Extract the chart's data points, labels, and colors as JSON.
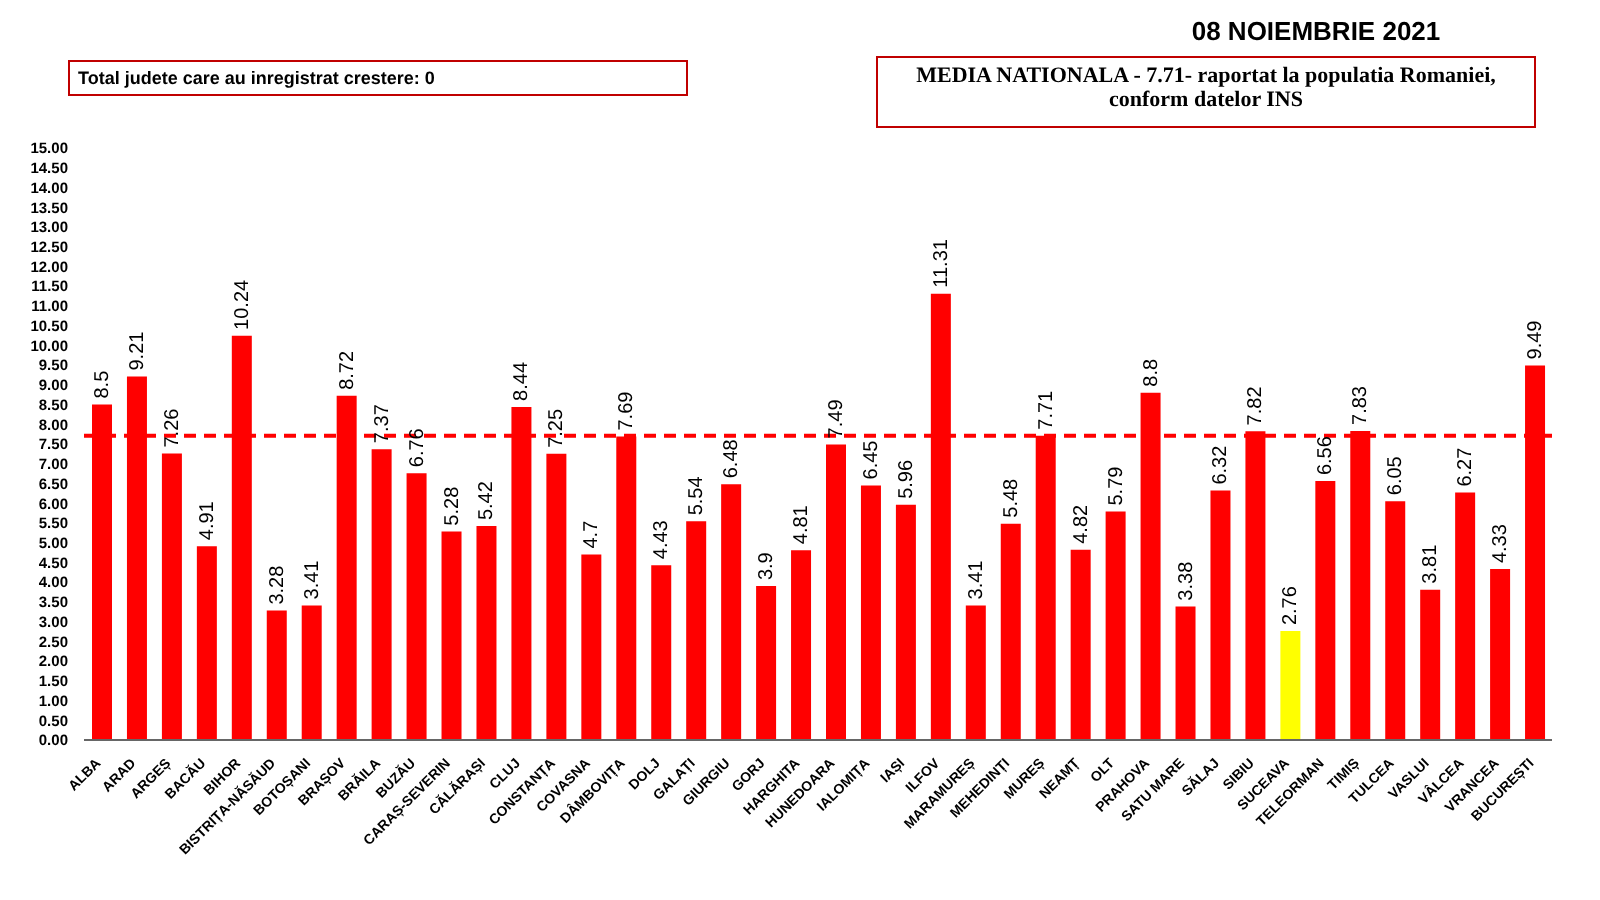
{
  "chart_data": {
    "type": "bar",
    "title": "08 NOIEMBRIE 2021",
    "annotations": [
      "Total judete care au inregistrat crestere: 0",
      "MEDIA NATIONALA - 7.71-  raportat la populatia Romaniei, conform datelor INS"
    ],
    "categories": [
      "ALBA",
      "ARAD",
      "ARGEȘ",
      "BACĂU",
      "BIHOR",
      "BISTRIȚA-NĂSĂUD",
      "BOTOȘANI",
      "BRAȘOV",
      "BRĂILA",
      "BUZĂU",
      "CARAȘ-SEVERIN",
      "CĂLĂRAȘI",
      "CLUJ",
      "CONSTANȚA",
      "COVASNA",
      "DÂMBOVIȚA",
      "DOLJ",
      "GALAȚI",
      "GIURGIU",
      "GORJ",
      "HARGHITA",
      "HUNEDOARA",
      "IALOMIȚA",
      "IAȘI",
      "ILFOV",
      "MARAMUREȘ",
      "MEHEDINȚI",
      "MUREȘ",
      "NEAMȚ",
      "OLT",
      "PRAHOVA",
      "SATU MARE",
      "SĂLAJ",
      "SIBIU",
      "SUCEAVA",
      "TELEORMAN",
      "TIMIȘ",
      "TULCEA",
      "VASLUI",
      "VÂLCEA",
      "VRANCEA",
      "BUCUREȘTI"
    ],
    "values": [
      8.5,
      9.21,
      7.26,
      4.91,
      10.24,
      3.28,
      3.41,
      8.72,
      7.37,
      6.76,
      5.28,
      5.42,
      8.44,
      7.25,
      4.7,
      7.69,
      4.43,
      5.54,
      6.48,
      3.9,
      4.81,
      7.49,
      6.45,
      5.96,
      11.31,
      3.41,
      5.48,
      7.71,
      4.82,
      5.79,
      8.8,
      3.38,
      6.32,
      7.82,
      2.76,
      6.56,
      7.83,
      6.05,
      3.81,
      6.27,
      4.33,
      9.49
    ],
    "colors": [
      "#ff0000",
      "#ff0000",
      "#ff0000",
      "#ff0000",
      "#ff0000",
      "#ff0000",
      "#ff0000",
      "#ff0000",
      "#ff0000",
      "#ff0000",
      "#ff0000",
      "#ff0000",
      "#ff0000",
      "#ff0000",
      "#ff0000",
      "#ff0000",
      "#ff0000",
      "#ff0000",
      "#ff0000",
      "#ff0000",
      "#ff0000",
      "#ff0000",
      "#ff0000",
      "#ff0000",
      "#ff0000",
      "#ff0000",
      "#ff0000",
      "#ff0000",
      "#ff0000",
      "#ff0000",
      "#ff0000",
      "#ff0000",
      "#ff0000",
      "#ff0000",
      "#ffff00",
      "#ff0000",
      "#ff0000",
      "#ff0000",
      "#ff0000",
      "#ff0000",
      "#ff0000",
      "#ff0000"
    ],
    "ylim": [
      0,
      15
    ],
    "yticks": [
      {
        "value": 0,
        "label": "0.00"
      },
      {
        "value": 0.5,
        "label": "0.50"
      },
      {
        "value": 1,
        "label": "1.00"
      },
      {
        "value": 1.5,
        "label": "1.50"
      },
      {
        "value": 2,
        "label": "2.00"
      },
      {
        "value": 2.5,
        "label": "2.50"
      },
      {
        "value": 3,
        "label": "3.00"
      },
      {
        "value": 3.5,
        "label": "3.50"
      },
      {
        "value": 4,
        "label": "4.00"
      },
      {
        "value": 4.5,
        "label": "4.50"
      },
      {
        "value": 5,
        "label": "5.00"
      },
      {
        "value": 5.5,
        "label": "5.50"
      },
      {
        "value": 6,
        "label": "6.00"
      },
      {
        "value": 6.5,
        "label": "6.50"
      },
      {
        "value": 7,
        "label": "7.00"
      },
      {
        "value": 7.5,
        "label": "7.50"
      },
      {
        "value": 8,
        "label": "8.00"
      },
      {
        "value": 8.5,
        "label": "8.50"
      },
      {
        "value": 9,
        "label": "9.00"
      },
      {
        "value": 9.5,
        "label": "9.50"
      },
      {
        "value": 10,
        "label": "10.00"
      },
      {
        "value": 10.5,
        "label": "10.50"
      },
      {
        "value": 11,
        "label": "11.00"
      },
      {
        "value": 11.5,
        "label": "11.50"
      },
      {
        "value": 12,
        "label": "12.00"
      },
      {
        "value": 12.5,
        "label": "12.50"
      },
      {
        "value": 13,
        "label": "13.00"
      },
      {
        "value": 13.5,
        "label": "13.50"
      },
      {
        "value": 14,
        "label": "14.00"
      },
      {
        "value": 14.5,
        "label": "14.50"
      },
      {
        "value": 15,
        "label": "15.00"
      }
    ],
    "ref_lines": [
      {
        "axis": "y",
        "value": 7.71,
        "color": "#ff0000",
        "line_style": "dashed"
      }
    ],
    "data_labels": true
  }
}
